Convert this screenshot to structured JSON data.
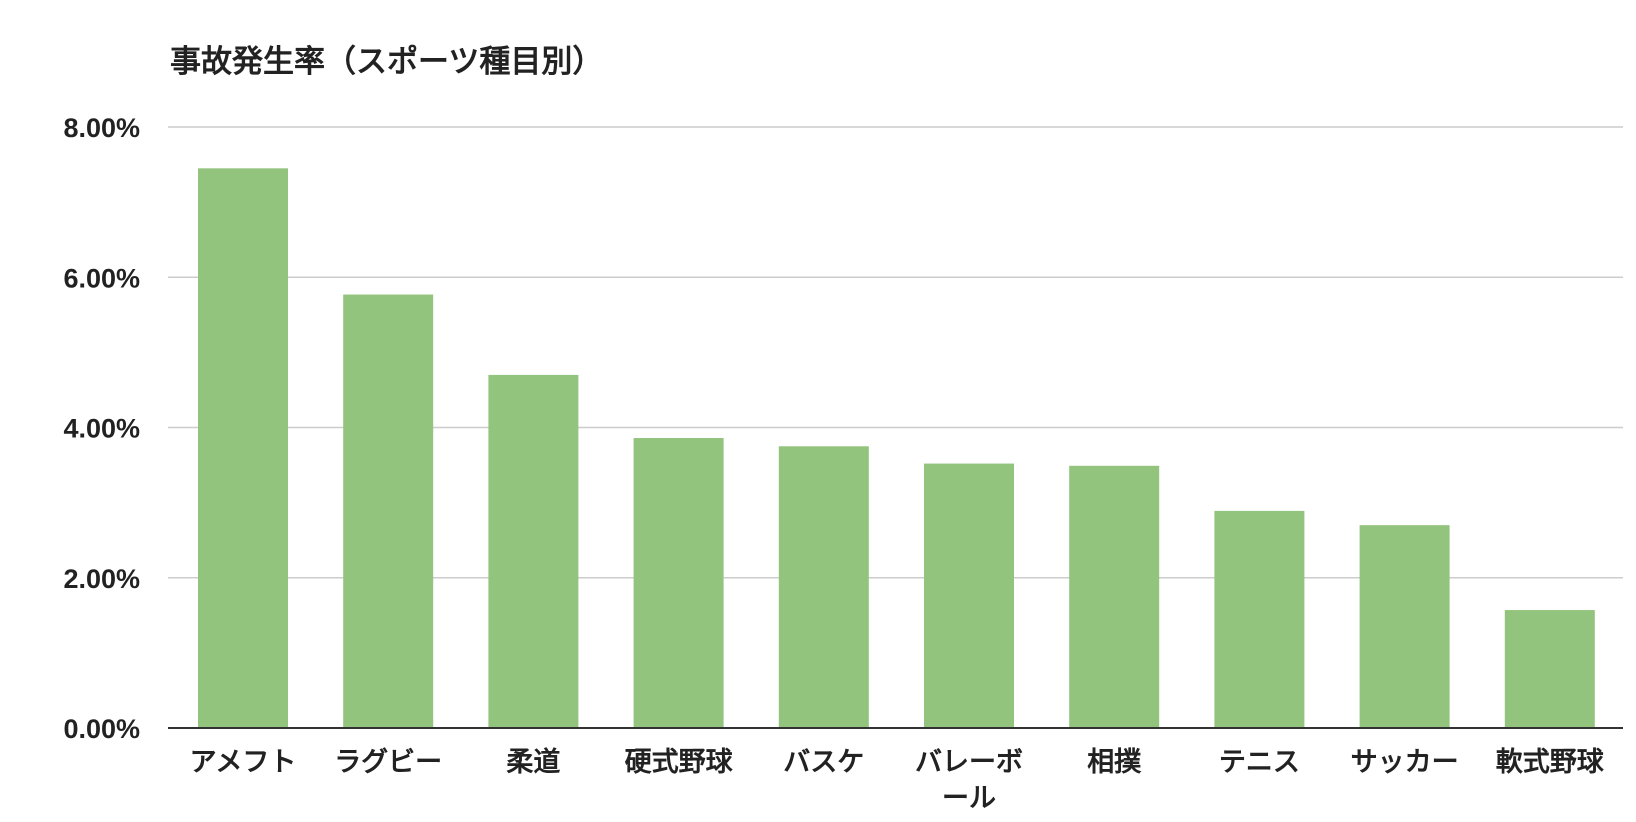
{
  "chart_data": {
    "type": "bar",
    "title": "事故発生率（スポーツ種目別）",
    "xlabel": "",
    "ylabel": "",
    "categories": [
      "アメフト",
      "ラグビー",
      "柔道",
      "硬式野球",
      "バスケ",
      "バレーボール",
      "相撲",
      "テニス",
      "サッカー",
      "軟式野球"
    ],
    "category_lines": [
      [
        "アメフト"
      ],
      [
        "ラグビー"
      ],
      [
        "柔道"
      ],
      [
        "硬式野球"
      ],
      [
        "バスケ"
      ],
      [
        "バレーボ",
        "ール"
      ],
      [
        "相撲"
      ],
      [
        "テニス"
      ],
      [
        "サッカー"
      ],
      [
        "軟式野球"
      ]
    ],
    "values": [
      7.45,
      5.77,
      4.7,
      3.86,
      3.75,
      3.52,
      3.49,
      2.89,
      2.7,
      1.57
    ],
    "ylim": [
      0,
      8
    ],
    "yticks": [
      0,
      2,
      4,
      6,
      8
    ],
    "ytick_labels": [
      "0.00%",
      "2.00%",
      "4.00%",
      "6.00%",
      "8.00%"
    ],
    "grid": true,
    "legend": "none",
    "bar_color": "#93c47d"
  }
}
